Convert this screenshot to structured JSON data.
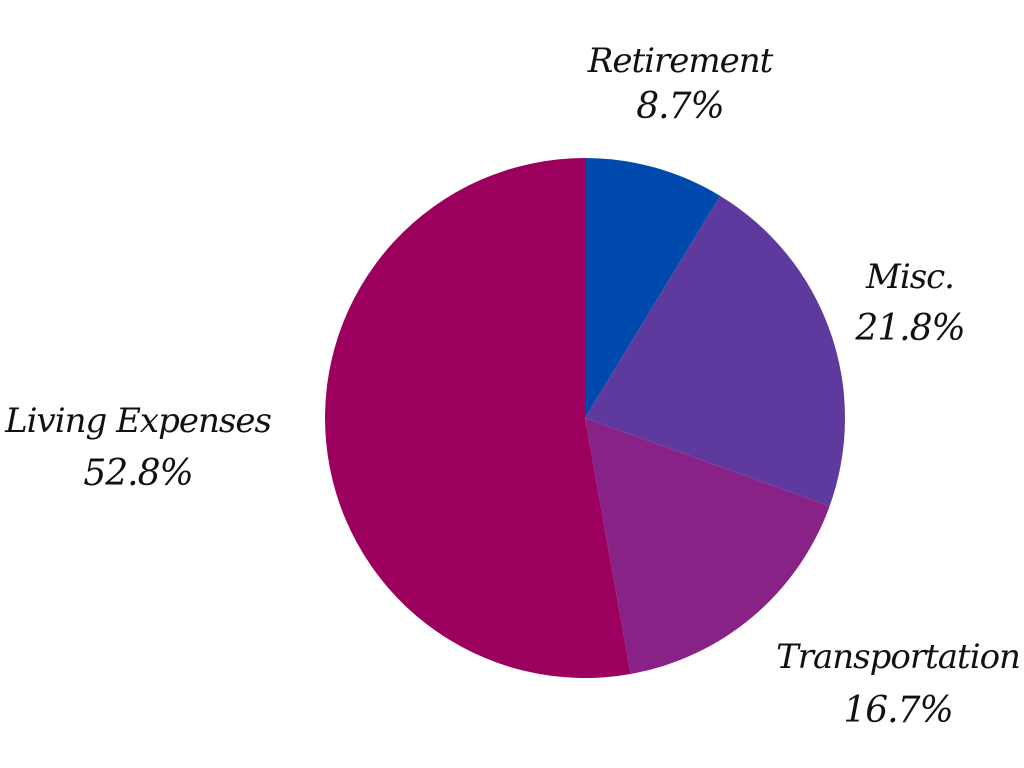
{
  "chart_data": {
    "type": "pie",
    "start_angle_deg": 0,
    "direction": "clockwise",
    "slices": [
      {
        "label": "Retirement",
        "value": 8.7,
        "display": "8.7%",
        "color": "#004aad"
      },
      {
        "label": "Misc.",
        "value": 21.8,
        "display": "21.8%",
        "color": "#5e3a9f"
      },
      {
        "label": "Transportation",
        "value": 16.7,
        "display": "16.7%",
        "color": "#892287"
      },
      {
        "label": "Living Expenses",
        "value": 52.8,
        "display": "52.8%",
        "color": "#9b005f"
      }
    ]
  }
}
